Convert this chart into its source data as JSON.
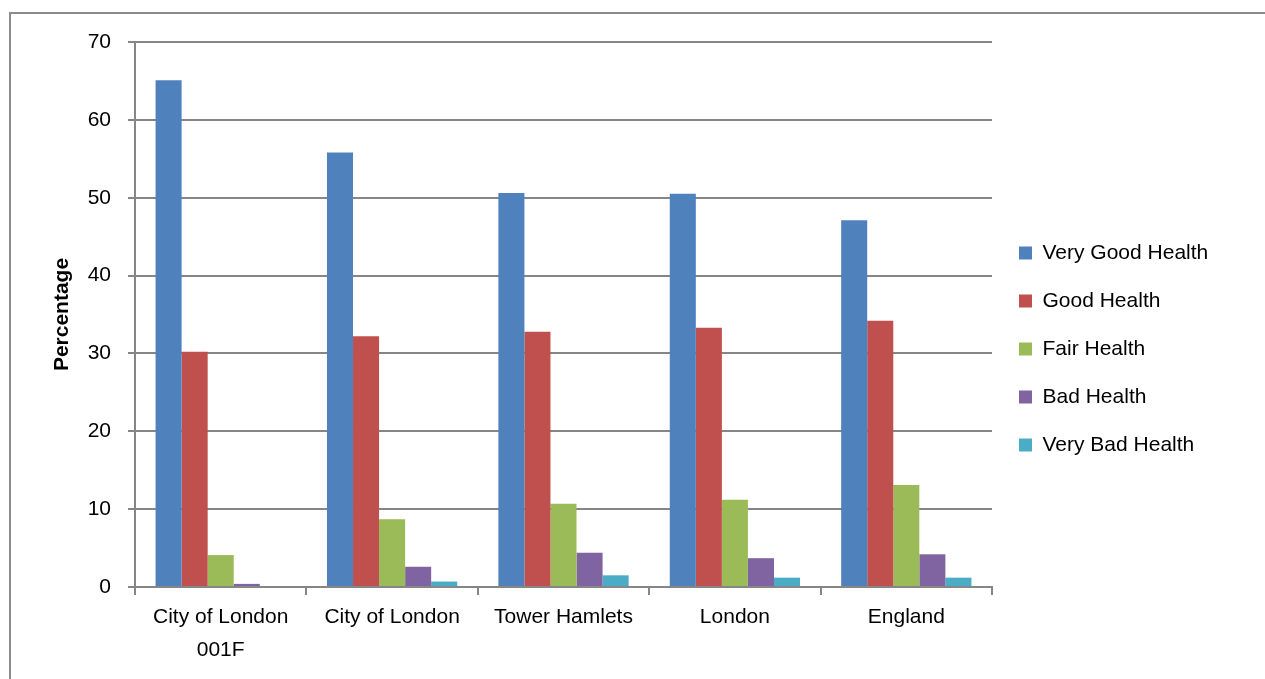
{
  "chart_data": {
    "type": "bar",
    "ylabel": "Percentage",
    "categories": [
      "City of London 001F",
      "City of London",
      "Tower Hamlets",
      "London",
      "England"
    ],
    "series": [
      {
        "name": "Very Good Health",
        "color": "#4f81bd",
        "values": [
          65.1,
          55.8,
          50.6,
          50.5,
          47.1
        ]
      },
      {
        "name": "Good Health",
        "color": "#c0504d",
        "values": [
          30.2,
          32.2,
          32.8,
          33.3,
          34.2
        ]
      },
      {
        "name": "Fair Health",
        "color": "#9bbb59",
        "values": [
          4.1,
          8.7,
          10.7,
          11.2,
          13.1
        ]
      },
      {
        "name": "Bad Health",
        "color": "#8064a2",
        "values": [
          0.4,
          2.6,
          4.4,
          3.7,
          4.2
        ]
      },
      {
        "name": "Very Bad Health",
        "color": "#4bacc6",
        "values": [
          0,
          0.7,
          1.5,
          1.2,
          1.2
        ]
      }
    ],
    "ylim": [
      0,
      70
    ],
    "yticks": [
      0,
      10,
      20,
      30,
      40,
      50,
      60,
      70
    ],
    "grid": "y",
    "legend": "right"
  }
}
